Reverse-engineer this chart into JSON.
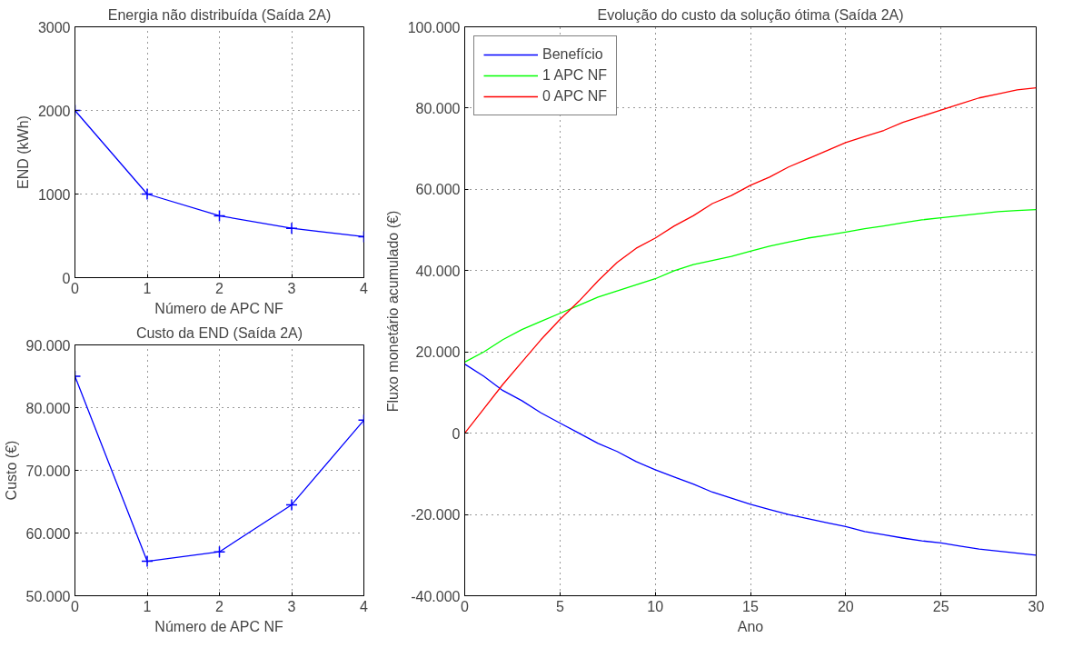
{
  "chart_data": [
    {
      "type": "line",
      "title": "Energia não distribuída (Saída 2A)",
      "xlabel": "Número de APC NF",
      "ylabel": "END (kWh)",
      "x": [
        0,
        1,
        2,
        3,
        4
      ],
      "series": [
        {
          "color": "#0000ff",
          "values": [
            2000,
            1000,
            740,
            590,
            490
          ]
        }
      ],
      "xlim": [
        0,
        4
      ],
      "xticks": [
        0,
        1,
        2,
        3,
        4
      ],
      "ylim": [
        0,
        3000
      ],
      "yticks": [
        0,
        1000,
        2000,
        3000
      ],
      "grid": true,
      "marker": "cross",
      "line_style": "solid"
    },
    {
      "type": "line",
      "title": "Custo da END (Saída 2A)",
      "xlabel": "Número de APC NF",
      "ylabel": "Custo (€)",
      "x": [
        0,
        1,
        2,
        3,
        4
      ],
      "series": [
        {
          "color": "#0000ff",
          "values": [
            85000,
            55500,
            57000,
            64500,
            78000
          ]
        }
      ],
      "xlim": [
        0,
        4
      ],
      "xticks": [
        0,
        1,
        2,
        3,
        4
      ],
      "ylim": [
        50000,
        90000
      ],
      "yticks": [
        {
          "value": 50000,
          "label": "50.000"
        },
        {
          "value": 60000,
          "label": "60.000"
        },
        {
          "value": 70000,
          "label": "70.000"
        },
        {
          "value": 80000,
          "label": "80.000"
        },
        {
          "value": 90000,
          "label": "90.000"
        }
      ],
      "grid": true,
      "marker": "cross",
      "line_style": "solid"
    },
    {
      "type": "line",
      "title": "Evolução do custo da solução ótima (Saída 2A)",
      "xlabel": "Ano",
      "ylabel": "Fluxo monetário acumulado (€)",
      "x": [
        0,
        1,
        2,
        3,
        4,
        5,
        6,
        7,
        8,
        9,
        10,
        11,
        12,
        13,
        14,
        15,
        16,
        17,
        18,
        19,
        20,
        21,
        22,
        23,
        24,
        25,
        26,
        27,
        28,
        29,
        30
      ],
      "series": [
        {
          "name": "Benefício",
          "color": "#0000ff",
          "values": [
            17000,
            14000,
            10500,
            8000,
            5000,
            2500,
            0,
            -2500,
            -4500,
            -7000,
            -9000,
            -10800,
            -12500,
            -14500,
            -16000,
            -17500,
            -18800,
            -20000,
            -21000,
            -22000,
            -23000,
            -24200,
            -25000,
            -25800,
            -26500,
            -27000,
            -27800,
            -28500,
            -29000,
            -29500,
            -30000
          ]
        },
        {
          "name": "1 APC NF",
          "color": "#00ff00",
          "values": [
            17500,
            20000,
            23000,
            25500,
            27500,
            29500,
            31500,
            33500,
            35000,
            36500,
            38000,
            40000,
            41500,
            42500,
            43500,
            44800,
            46000,
            47000,
            48000,
            48700,
            49500,
            50300,
            51000,
            51800,
            52500,
            53000,
            53500,
            54000,
            54500,
            54800,
            55000
          ]
        },
        {
          "name": "0 APC NF",
          "color": "#ff0000",
          "values": [
            0,
            6000,
            12000,
            17500,
            23000,
            28000,
            32500,
            37500,
            42000,
            45500,
            48000,
            51000,
            53500,
            56500,
            58500,
            61000,
            63000,
            65500,
            67500,
            69500,
            71500,
            73000,
            74500,
            76500,
            78000,
            79500,
            81000,
            82500,
            83500,
            84500,
            85000
          ]
        }
      ],
      "xlim": [
        0,
        30
      ],
      "xticks": [
        0,
        5,
        10,
        15,
        20,
        25,
        30
      ],
      "ylim": [
        -40000,
        100000
      ],
      "yticks": [
        {
          "value": -40000,
          "label": "-40.000"
        },
        {
          "value": -20000,
          "label": "-20.000"
        },
        0,
        {
          "value": 20000,
          "label": "20.000"
        },
        {
          "value": 40000,
          "label": "40.000"
        },
        {
          "value": 60000,
          "label": "60.000"
        },
        {
          "value": 80000,
          "label": "80.000"
        },
        {
          "value": 100000,
          "label": "100.000"
        }
      ],
      "grid": true,
      "legend": "top left",
      "marker": "none",
      "line_style": "solid"
    }
  ]
}
